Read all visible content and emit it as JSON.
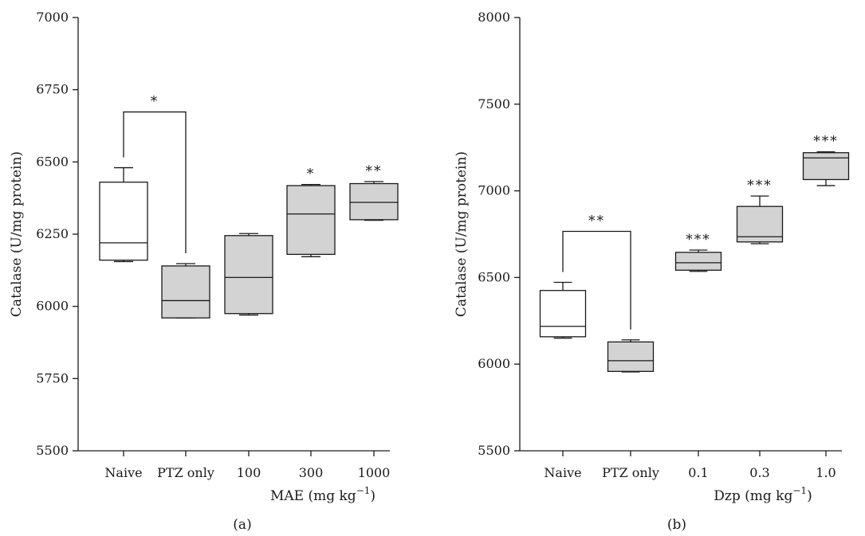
{
  "chart_data": [
    {
      "type": "box",
      "panel_label": "(a)",
      "ylabel": "Catalase (U/mg protein)",
      "xlabel": "MAE (mg kg",
      "xlabel_sup": "−1",
      "xlabel_close": ")",
      "ylim": [
        5500,
        7000
      ],
      "yticks": [
        5500,
        5750,
        6000,
        6250,
        6500,
        6750,
        7000
      ],
      "categories": [
        "Naive",
        "PTZ only",
        "100",
        "300",
        "1000"
      ],
      "fills": [
        "#ffffff",
        "#d3d3d3",
        "#d3d3d3",
        "#d3d3d3",
        "#d3d3d3"
      ],
      "boxes": [
        {
          "min": 6155,
          "q1": 6160,
          "median": 6220,
          "q3": 6430,
          "max": 6480
        },
        {
          "min": 5960,
          "q1": 5960,
          "median": 6020,
          "q3": 6140,
          "max": 6148
        },
        {
          "min": 5970,
          "q1": 5975,
          "median": 6100,
          "q3": 6245,
          "max": 6252
        },
        {
          "min": 6172,
          "q1": 6180,
          "median": 6320,
          "q3": 6418,
          "max": 6422
        },
        {
          "min": 6298,
          "q1": 6300,
          "median": 6360,
          "q3": 6425,
          "max": 6432
        }
      ],
      "significance": [
        "",
        "",
        "",
        "*",
        "**"
      ],
      "bracket": {
        "from": 0,
        "to": 1,
        "label": "*"
      }
    },
    {
      "type": "box",
      "panel_label": "(b)",
      "ylabel": "Catalase (U/mg protein)",
      "xlabel": "Dzp (mg kg",
      "xlabel_sup": "−1",
      "xlabel_close": ")",
      "ylim": [
        5500,
        8000
      ],
      "yticks": [
        5500,
        6000,
        6500,
        7000,
        7500,
        8000
      ],
      "categories": [
        "Naive",
        "PTZ only",
        "0.1",
        "0.3",
        "1.0"
      ],
      "fills": [
        "#ffffff",
        "#d3d3d3",
        "#d3d3d3",
        "#d3d3d3",
        "#d3d3d3"
      ],
      "boxes": [
        {
          "min": 6150,
          "q1": 6158,
          "median": 6218,
          "q3": 6425,
          "max": 6472
        },
        {
          "min": 5955,
          "q1": 5958,
          "median": 6020,
          "q3": 6128,
          "max": 6140
        },
        {
          "min": 6535,
          "q1": 6542,
          "median": 6585,
          "q3": 6645,
          "max": 6658
        },
        {
          "min": 6695,
          "q1": 6705,
          "median": 6735,
          "q3": 6910,
          "max": 6970
        },
        {
          "min": 7030,
          "q1": 7065,
          "median": 7190,
          "q3": 7220,
          "max": 7225
        }
      ],
      "significance": [
        "",
        "",
        "***",
        "***",
        "***"
      ],
      "bracket": {
        "from": 0,
        "to": 1,
        "label": "**"
      }
    }
  ]
}
